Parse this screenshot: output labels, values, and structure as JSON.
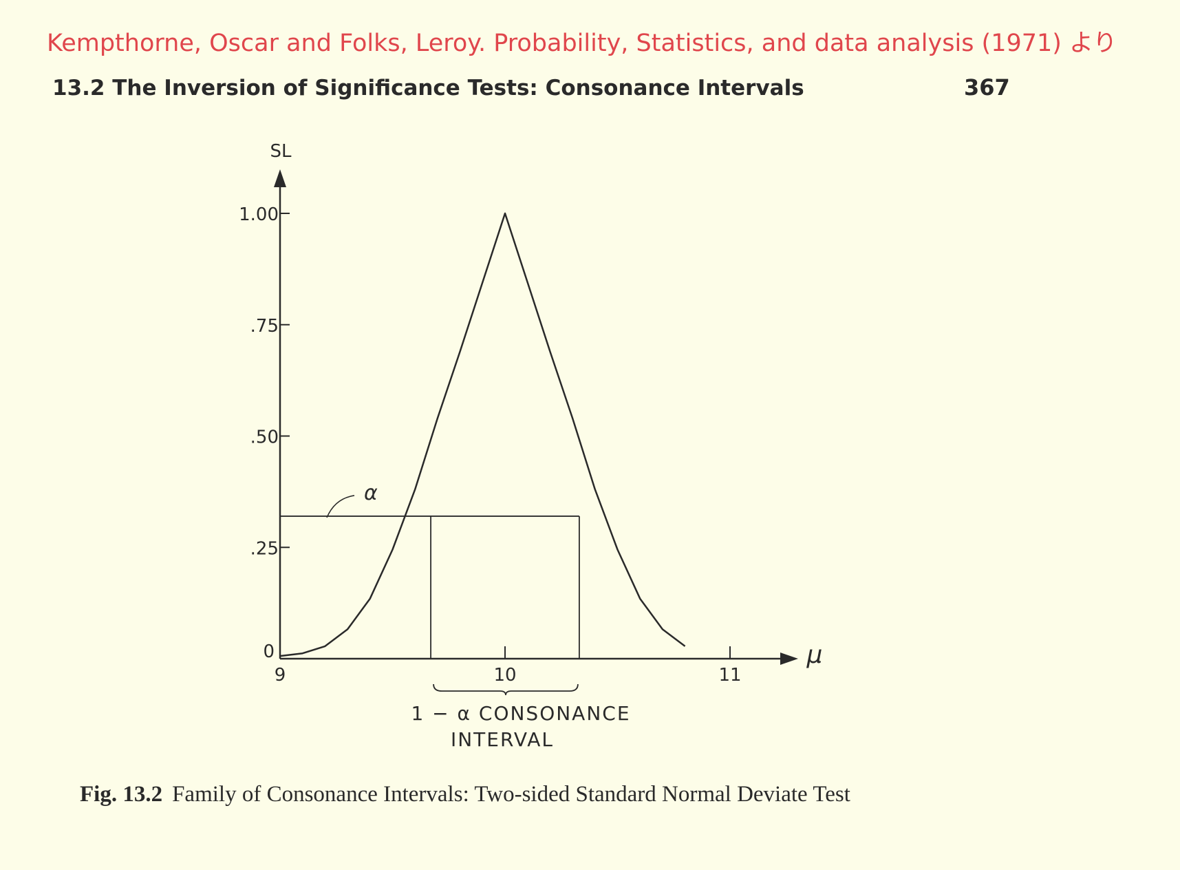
{
  "source_note": "Kempthorne, Oscar and Folks, Leroy. Probability, Statistics, and data analysis (1971) より",
  "running_head": "13.2 The Inversion of Significance Tests: Consonance Intervals",
  "page_number": "367",
  "caption": {
    "number": "Fig. 13.2",
    "text": "Family of Consonance Intervals: Two-sided Standard Normal Deviate Test"
  },
  "chart_data": {
    "type": "line",
    "ylabel": "SL",
    "xlabel": "μ",
    "xlim": [
      9,
      11.25
    ],
    "ylim": [
      0,
      1.0
    ],
    "x_ticks": [
      {
        "value": 9,
        "label": "9"
      },
      {
        "value": 10,
        "label": "10"
      },
      {
        "value": 11,
        "label": "11"
      }
    ],
    "y_ticks": [
      {
        "value": 0,
        "label": "0"
      },
      {
        "value": 0.25,
        "label": ".25"
      },
      {
        "value": 0.5,
        "label": ".50"
      },
      {
        "value": 0.75,
        "label": ".75"
      },
      {
        "value": 1.0,
        "label": "1.00"
      }
    ],
    "series": [
      {
        "x": [
          9.0,
          9.1,
          9.2,
          9.3,
          9.4,
          9.5,
          9.6,
          9.7,
          9.8,
          9.9,
          10.0,
          10.1,
          10.2,
          10.3,
          10.4,
          10.5,
          10.6,
          10.7,
          10.8
        ],
        "y": [
          0.006,
          0.012,
          0.028,
          0.066,
          0.135,
          0.245,
          0.38,
          0.54,
          0.69,
          0.845,
          1.0,
          0.845,
          0.69,
          0.54,
          0.38,
          0.245,
          0.135,
          0.066,
          0.028
        ]
      }
    ],
    "alpha_level": 0.32,
    "alpha_label": "α",
    "interval": [
      9.67,
      10.33
    ],
    "interval_label_line1": "1 − α CONSONANCE",
    "interval_label_line2": "INTERVAL",
    "grid": false
  }
}
